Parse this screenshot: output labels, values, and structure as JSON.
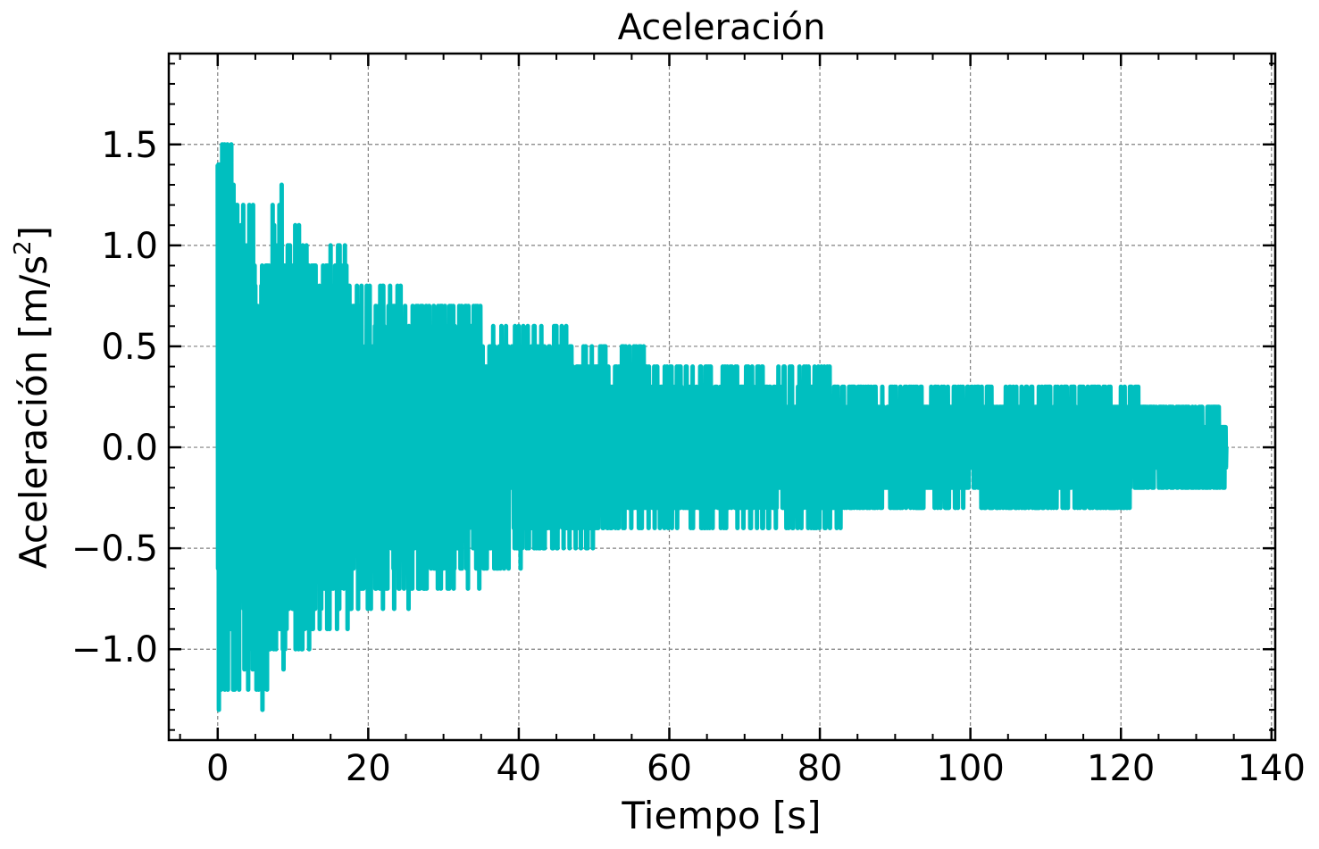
{
  "chart_data": {
    "type": "line",
    "title": "Aceleración",
    "xlabel": "Tiempo [s]",
    "ylabel_main": "Aceleración [m/s",
    "ylabel_sup": "2",
    "ylabel_close": "]",
    "xlim": [
      -6.5,
      140.5
    ],
    "ylim": [
      -1.45,
      1.95
    ],
    "xticks": [
      {
        "value": 0,
        "label": "0"
      },
      {
        "value": 20,
        "label": "20"
      },
      {
        "value": 40,
        "label": "40"
      },
      {
        "value": 60,
        "label": "60"
      },
      {
        "value": 80,
        "label": "80"
      },
      {
        "value": 100,
        "label": "100"
      },
      {
        "value": 120,
        "label": "120"
      },
      {
        "value": 140,
        "label": "140"
      }
    ],
    "yticks": [
      {
        "value": -1.0,
        "label": "−1.0"
      },
      {
        "value": -0.5,
        "label": "−0.5"
      },
      {
        "value": 0.0,
        "label": "0.0"
      },
      {
        "value": 0.5,
        "label": "0.5"
      },
      {
        "value": 1.0,
        "label": "1.0"
      },
      {
        "value": 1.5,
        "label": "1.5"
      }
    ],
    "grid": true,
    "series": [
      {
        "color": "#00bfbf",
        "t_start": 0,
        "t_end": 134,
        "envelope": [
          {
            "t": 0,
            "max": 1.8,
            "min": -1.3
          },
          {
            "t": 2,
            "max": 1.5,
            "min": -1.3
          },
          {
            "t": 4,
            "max": 1.3,
            "min": -1.2
          },
          {
            "t": 6,
            "max": 1.0,
            "min": -1.3
          },
          {
            "t": 8,
            "max": 1.4,
            "min": -1.1
          },
          {
            "t": 10,
            "max": 1.1,
            "min": -1.0
          },
          {
            "t": 12,
            "max": 1.1,
            "min": -1.0
          },
          {
            "t": 14,
            "max": 1.0,
            "min": -0.9
          },
          {
            "t": 16,
            "max": 1.0,
            "min": -0.9
          },
          {
            "t": 18,
            "max": 0.9,
            "min": -0.9
          },
          {
            "t": 20,
            "max": 0.8,
            "min": -0.8
          },
          {
            "t": 25,
            "max": 0.8,
            "min": -0.8
          },
          {
            "t": 30,
            "max": 0.7,
            "min": -0.7
          },
          {
            "t": 35,
            "max": 0.7,
            "min": -0.7
          },
          {
            "t": 40,
            "max": 0.6,
            "min": -0.6
          },
          {
            "t": 45,
            "max": 0.6,
            "min": -0.5
          },
          {
            "t": 50,
            "max": 0.5,
            "min": -0.5
          },
          {
            "t": 55,
            "max": 0.5,
            "min": -0.4
          },
          {
            "t": 60,
            "max": 0.4,
            "min": -0.4
          },
          {
            "t": 70,
            "max": 0.4,
            "min": -0.4
          },
          {
            "t": 80,
            "max": 0.4,
            "min": -0.4
          },
          {
            "t": 90,
            "max": 0.3,
            "min": -0.3
          },
          {
            "t": 100,
            "max": 0.3,
            "min": -0.3
          },
          {
            "t": 110,
            "max": 0.3,
            "min": -0.3
          },
          {
            "t": 120,
            "max": 0.3,
            "min": -0.3
          },
          {
            "t": 125,
            "max": 0.2,
            "min": -0.2
          },
          {
            "t": 130,
            "max": 0.2,
            "min": -0.2
          },
          {
            "t": 134,
            "max": 0.2,
            "min": -0.2
          }
        ],
        "sample_dt": 0.05,
        "quantum": 0.1
      }
    ]
  }
}
